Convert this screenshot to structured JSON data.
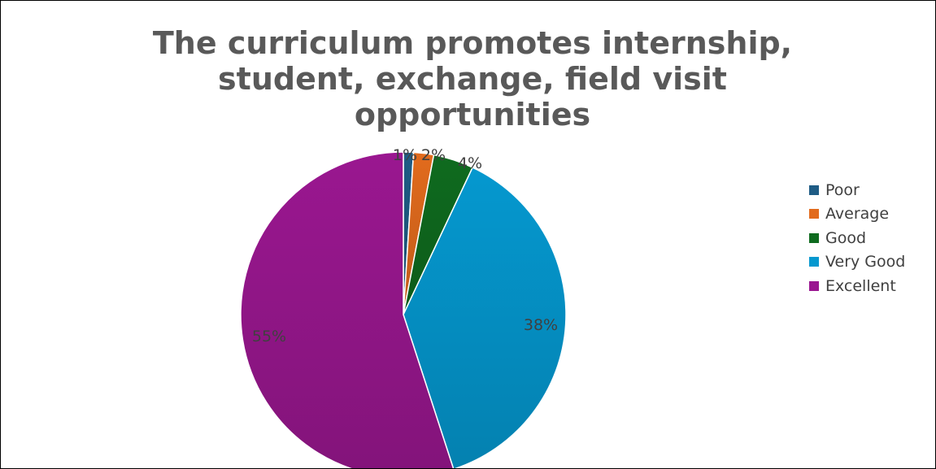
{
  "chart_data": {
    "type": "pie",
    "title": "The curriculum promotes internship, student, exchange, field visit opportunities",
    "categories": [
      "Poor",
      "Average",
      "Good",
      "Very Good",
      "Excellent"
    ],
    "values": [
      1,
      2,
      4,
      38,
      55
    ],
    "labels": [
      "1%",
      "2%",
      "4%",
      "38%",
      "55%"
    ],
    "colors": [
      "#1f5c85",
      "#e26b1d",
      "#0f6b1f",
      "#0598cf",
      "#9a1790"
    ],
    "legend_position": "right",
    "start_angle_degrees": 0,
    "direction": "clockwise"
  }
}
